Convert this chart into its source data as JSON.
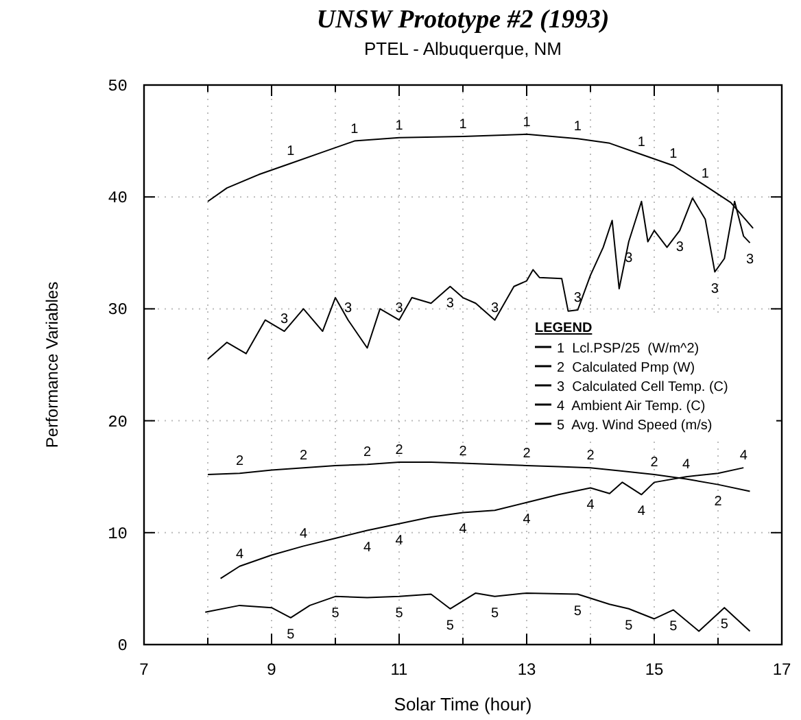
{
  "chart_data": {
    "type": "line",
    "title": "UNSW Prototype #2 (1993)",
    "subtitle": "PTEL - Albuquerque,  NM",
    "xlabel": "Solar Time (hour)",
    "ylabel": "Performance Variables",
    "legend_title": "LEGEND",
    "legend": "right",
    "grid": true,
    "line_style": "solid",
    "xlim": [
      7,
      17
    ],
    "ylim": [
      0,
      50
    ],
    "xticks": [
      7,
      {
        "value": 8,
        "label": null
      },
      9,
      {
        "value": 10,
        "label": null
      },
      11,
      {
        "value": 12,
        "label": null
      },
      13,
      {
        "value": 14,
        "label": null
      },
      15,
      {
        "value": 16,
        "label": null
      },
      17
    ],
    "yticks": [
      0,
      10,
      20,
      30,
      40,
      50
    ],
    "annotations": [
      {
        "text": "1",
        "x": 9.3,
        "y": 43
      },
      {
        "text": "1",
        "x": 10.3,
        "y": 45
      },
      {
        "text": "1",
        "x": 11,
        "y": 45.3
      },
      {
        "text": "1",
        "x": 12,
        "y": 45.4
      },
      {
        "text": "1",
        "x": 13,
        "y": 45.6
      },
      {
        "text": "1",
        "x": 13.8,
        "y": 45.2
      },
      {
        "text": "1",
        "x": 14.8,
        "y": 43.8
      },
      {
        "text": "1",
        "x": 15.3,
        "y": 42.8
      },
      {
        "text": "1",
        "x": 15.8,
        "y": 41
      },
      {
        "text": "2",
        "x": 8.5,
        "y": 15.3
      },
      {
        "text": "2",
        "x": 9.5,
        "y": 15.8
      },
      {
        "text": "2",
        "x": 10.5,
        "y": 16.1
      },
      {
        "text": "2",
        "x": 11,
        "y": 16.3
      },
      {
        "text": "2",
        "x": 12,
        "y": 16.2
      },
      {
        "text": "2",
        "x": 13,
        "y": 16
      },
      {
        "text": "2",
        "x": 14,
        "y": 15.8
      },
      {
        "text": "2",
        "x": 15,
        "y": 15.2
      },
      {
        "text": "2",
        "x": 16,
        "y": 14.3
      },
      {
        "text": "3",
        "x": 9.2,
        "y": 28
      },
      {
        "text": "3",
        "x": 10.2,
        "y": 29
      },
      {
        "text": "3",
        "x": 11,
        "y": 29
      },
      {
        "text": "3",
        "x": 11.8,
        "y": 32
      },
      {
        "text": "3",
        "x": 12.5,
        "y": 29
      },
      {
        "text": "3",
        "x": 13.8,
        "y": 29.9
      },
      {
        "text": "3",
        "x": 14.6,
        "y": 36
      },
      {
        "text": "3",
        "x": 15.4,
        "y": 37
      },
      {
        "text": "3",
        "x": 15.95,
        "y": 33.3
      },
      {
        "text": "3",
        "x": 16.5,
        "y": 35.9
      },
      {
        "text": "4",
        "x": 8.5,
        "y": 7
      },
      {
        "text": "4",
        "x": 9.5,
        "y": 8.8
      },
      {
        "text": "4",
        "x": 10.5,
        "y": 10.2
      },
      {
        "text": "4",
        "x": 11,
        "y": 10.8
      },
      {
        "text": "4",
        "x": 12,
        "y": 11.8
      },
      {
        "text": "4",
        "x": 13,
        "y": 12.7
      },
      {
        "text": "4",
        "x": 14,
        "y": 14
      },
      {
        "text": "4",
        "x": 14.8,
        "y": 13.4
      },
      {
        "text": "4",
        "x": 15.5,
        "y": 15
      },
      {
        "text": "4",
        "x": 16.4,
        "y": 15.8
      },
      {
        "text": "5",
        "x": 9.3,
        "y": 2.4
      },
      {
        "text": "5",
        "x": 10,
        "y": 4.3
      },
      {
        "text": "5",
        "x": 11,
        "y": 4.3
      },
      {
        "text": "5",
        "x": 11.8,
        "y": 3.2
      },
      {
        "text": "5",
        "x": 12.5,
        "y": 4.3
      },
      {
        "text": "5",
        "x": 13.8,
        "y": 4.5
      },
      {
        "text": "5",
        "x": 14.6,
        "y": 3.2
      },
      {
        "text": "5",
        "x": 15.3,
        "y": 3.1
      },
      {
        "text": "5",
        "x": 16.1,
        "y": 3.3
      }
    ],
    "series": [
      {
        "name": "1  Lcl.PSP/25  (W/m^2)",
        "color": "#000000",
        "x": [
          8.0,
          8.3,
          8.8,
          9.3,
          9.8,
          10.3,
          11,
          12,
          13,
          13.8,
          14.3,
          14.8,
          15.3,
          15.8,
          16.2,
          16.55
        ],
        "values": [
          39.6,
          40.8,
          42,
          43,
          44,
          45,
          45.3,
          45.4,
          45.6,
          45.2,
          44.8,
          43.8,
          42.8,
          41,
          39.5,
          37.2
        ]
      },
      {
        "name": "2  Calculated Pmp (W)",
        "color": "#000000",
        "x": [
          8.0,
          8.5,
          9,
          9.5,
          10,
          10.5,
          11,
          11.5,
          12,
          12.5,
          13,
          13.5,
          14,
          14.5,
          15,
          15.5,
          16,
          16.5
        ],
        "values": [
          15.2,
          15.3,
          15.6,
          15.8,
          16,
          16.1,
          16.3,
          16.3,
          16.2,
          16.1,
          16,
          15.9,
          15.8,
          15.5,
          15.2,
          14.8,
          14.3,
          13.7
        ]
      },
      {
        "name": "3  Calculated Cell Temp. (C)",
        "color": "#000000",
        "x": [
          8.0,
          8.3,
          8.6,
          8.9,
          9.2,
          9.5,
          9.8,
          10.0,
          10.2,
          10.5,
          10.7,
          11,
          11.2,
          11.5,
          11.8,
          12,
          12.2,
          12.5,
          12.8,
          13,
          13.1,
          13.2,
          13.55,
          13.65,
          13.8,
          14,
          14.2,
          14.34,
          14.45,
          14.6,
          14.8,
          14.9,
          15,
          15.2,
          15.4,
          15.6,
          15.8,
          15.95,
          16.1,
          16.26,
          16.4,
          16.5
        ],
        "values": [
          25.5,
          27,
          26,
          29,
          28,
          30,
          28,
          31,
          29,
          26.5,
          30,
          29,
          31,
          30.5,
          32,
          31,
          30.5,
          29,
          32,
          32.5,
          33.5,
          32.8,
          32.7,
          29.8,
          29.9,
          33,
          35.5,
          37.9,
          31.8,
          36,
          39.6,
          36,
          37,
          35.5,
          37,
          39.9,
          38,
          33.3,
          34.5,
          39.6,
          36.5,
          35.9
        ]
      },
      {
        "name": "4  Ambient Air Temp. (C)",
        "color": "#000000",
        "x": [
          8.2,
          8.5,
          9,
          9.5,
          10,
          10.5,
          11,
          11.5,
          12,
          12.5,
          13,
          13.5,
          14,
          14.3,
          14.5,
          14.8,
          15,
          15.5,
          16,
          16.4
        ],
        "values": [
          5.9,
          7,
          8,
          8.8,
          9.5,
          10.2,
          10.8,
          11.4,
          11.8,
          12,
          12.7,
          13.4,
          14,
          13.5,
          14.5,
          13.4,
          14.5,
          15,
          15.3,
          15.8
        ]
      },
      {
        "name": "5  Avg. Wind Speed (m/s)",
        "color": "#000000",
        "x": [
          7.96,
          8.5,
          9,
          9.3,
          9.6,
          10,
          10.5,
          11,
          11.5,
          11.8,
          12.2,
          12.5,
          13,
          13.8,
          14.3,
          14.6,
          15,
          15.3,
          15.7,
          16.1,
          16.5
        ],
        "values": [
          2.9,
          3.5,
          3.3,
          2.4,
          3.5,
          4.3,
          4.2,
          4.3,
          4.5,
          3.2,
          4.6,
          4.3,
          4.6,
          4.5,
          3.6,
          3.2,
          2.3,
          3.1,
          1.2,
          3.3,
          1.2
        ]
      }
    ]
  }
}
